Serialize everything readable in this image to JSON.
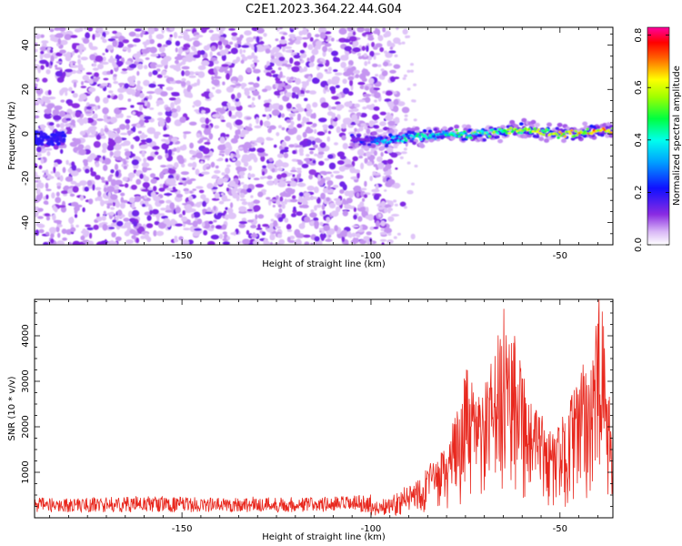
{
  "figure_title": "C2E1.2023.364.22.44.G04",
  "chart_data": [
    {
      "type": "heatmap",
      "xlabel": "Height of straight line (km)",
      "ylabel": "Frequency (Hz)",
      "xlim": [
        -189,
        -36
      ],
      "ylim": [
        -50,
        48
      ],
      "xticks": [
        -150,
        -100,
        -50
      ],
      "yticks": [
        -40,
        -20,
        0,
        20,
        40
      ],
      "colorbar": {
        "label": "Normalized spectral amplitude",
        "range": [
          0,
          0.83
        ],
        "ticks": [
          "0.0",
          "0.2",
          "0.4",
          "0.6",
          "0.8"
        ],
        "colormap": "rainbow (white-purple-blue-cyan-green-yellow-red-magenta)"
      },
      "description_points": {
        "noise_region_x": [
          -189,
          -93
        ],
        "signal_band": {
          "x": [
            -100,
            -90,
            -80,
            -70,
            -60,
            -50,
            -40,
            -36
          ],
          "freq": [
            -3,
            -2,
            0,
            0,
            2,
            0,
            1,
            2
          ]
        },
        "peak_amplitude_near_x": [
          -48,
          -63
        ]
      }
    },
    {
      "type": "line",
      "xlabel": "Height of straight line (km)",
      "ylabel": "SNR (10 * v/v)",
      "xlim": [
        -189,
        -36
      ],
      "ylim": [
        0,
        4800
      ],
      "xticks": [
        -150,
        -100,
        -50
      ],
      "yticks": [
        1000,
        2000,
        3000,
        4000
      ],
      "series": [
        {
          "color": "#e8281e",
          "x": [
            -189,
            -180,
            -170,
            -160,
            -150,
            -140,
            -130,
            -120,
            -110,
            -100,
            -95,
            -90,
            -85,
            -80,
            -77,
            -75,
            -72,
            -70,
            -67,
            -65,
            -63,
            -62,
            -60,
            -58,
            -55,
            -52,
            -50,
            -47,
            -45,
            -43,
            -41,
            -40,
            -39,
            -38,
            -37,
            -36
          ],
          "y": [
            250,
            240,
            260,
            280,
            260,
            250,
            270,
            260,
            270,
            300,
            450,
            700,
            1100,
            1500,
            2400,
            3200,
            2600,
            2800,
            3600,
            4400,
            4200,
            4600,
            3500,
            2500,
            2200,
            1800,
            2000,
            2600,
            3000,
            3400,
            3700,
            4500,
            4800,
            3400,
            2600,
            2000
          ]
        }
      ]
    }
  ]
}
